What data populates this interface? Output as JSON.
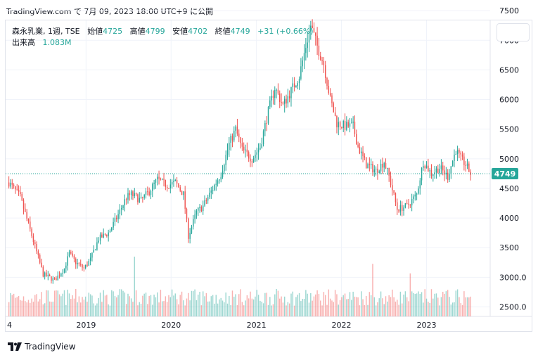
{
  "caption": "TradingView.com で 7月 09, 2023 18:00 UTC+9 に公開",
  "legend": {
    "symbol": "森永乳業, 1週, TSE",
    "open_label": "始値",
    "open": "4725",
    "high_label": "高値",
    "high": "4799",
    "low_label": "安値",
    "low": "4702",
    "close_label": "終値",
    "close": "4749",
    "change": "+31 (+0.66%)",
    "volume_label": "出来高",
    "volume": "1.083M"
  },
  "brand": "TradingView",
  "last_price_tag": "4749",
  "colors": {
    "up": "#26a69a",
    "down": "#ef5350",
    "grid": "#f0f3fa",
    "axis_text": "#131722"
  },
  "chart_data": {
    "type": "candlestick",
    "interval": "1 week",
    "price_axis": {
      "ticks": [
        2500,
        3000,
        3500,
        4000,
        4500,
        5000,
        5500,
        6000,
        6500,
        7000,
        7500
      ],
      "tick_labels": [
        "2500.0",
        "3000.0",
        "3500",
        "4000",
        "4500",
        "5000",
        "5500",
        "6000",
        "6500",
        "7000",
        "7500"
      ],
      "range": [
        2340,
        7620
      ]
    },
    "time_axis": {
      "tick_labels": [
        "4",
        "2019",
        "2020",
        "2021",
        "2022",
        "2023"
      ],
      "tick_dates": [
        "2018-04-01",
        "2019-01-01",
        "2020-01-01",
        "2021-01-01",
        "2022-01-01",
        "2023-01-01"
      ]
    },
    "last_price": 4749,
    "price_path": [
      [
        "2018-02-04",
        4600
      ],
      [
        "2018-03-25",
        4350
      ],
      [
        "2018-05-06",
        3800
      ],
      [
        "2018-07-01",
        3050
      ],
      [
        "2018-08-19",
        2950
      ],
      [
        "2018-09-30",
        3150
      ],
      [
        "2018-10-21",
        3400
      ],
      [
        "2018-11-18",
        3250
      ],
      [
        "2018-12-23",
        3150
      ],
      [
        "2019-01-20",
        3300
      ],
      [
        "2019-02-24",
        3650
      ],
      [
        "2019-04-07",
        3750
      ],
      [
        "2019-05-12",
        4000
      ],
      [
        "2019-06-23",
        4350
      ],
      [
        "2019-07-14",
        4400
      ],
      [
        "2019-08-25",
        4300
      ],
      [
        "2019-09-29",
        4450
      ],
      [
        "2019-11-03",
        4650
      ],
      [
        "2019-12-15",
        4550
      ],
      [
        "2020-01-19",
        4600
      ],
      [
        "2020-02-23",
        4400
      ],
      [
        "2020-03-15",
        3700
      ],
      [
        "2020-04-19",
        4100
      ],
      [
        "2020-05-17",
        4200
      ],
      [
        "2020-06-28",
        4500
      ],
      [
        "2020-08-02",
        4750
      ],
      [
        "2020-09-06",
        5250
      ],
      [
        "2020-10-04",
        5500
      ],
      [
        "2020-11-01",
        5150
      ],
      [
        "2020-12-13",
        5000
      ],
      [
        "2021-01-17",
        5200
      ],
      [
        "2021-02-21",
        5800
      ],
      [
        "2021-03-21",
        6200
      ],
      [
        "2021-04-25",
        5900
      ],
      [
        "2021-05-30",
        6150
      ],
      [
        "2021-07-04",
        6400
      ],
      [
        "2021-08-01",
        6900
      ],
      [
        "2021-08-22",
        7250
      ],
      [
        "2021-09-19",
        6900
      ],
      [
        "2021-10-17",
        6600
      ],
      [
        "2021-11-14",
        6000
      ],
      [
        "2021-12-12",
        5600
      ],
      [
        "2022-01-16",
        5550
      ],
      [
        "2022-02-20",
        5550
      ],
      [
        "2022-03-13",
        5200
      ],
      [
        "2022-04-17",
        4900
      ],
      [
        "2022-05-29",
        4800
      ],
      [
        "2022-07-03",
        4950
      ],
      [
        "2022-07-24",
        4700
      ],
      [
        "2022-08-28",
        4150
      ],
      [
        "2022-10-09",
        4200
      ],
      [
        "2022-11-20",
        4400
      ],
      [
        "2022-12-18",
        4950
      ],
      [
        "2023-01-22",
        4750
      ],
      [
        "2023-02-26",
        4850
      ],
      [
        "2023-04-02",
        4700
      ],
      [
        "2023-05-07",
        5150
      ],
      [
        "2023-05-28",
        5000
      ],
      [
        "2023-06-18",
        4900
      ],
      [
        "2023-07-09",
        4749
      ]
    ],
    "volume_axis": {
      "tick_labels": [
        "2500.0",
        "3000.0"
      ]
    },
    "volume_spikes": [
      [
        "2019-07-28",
        1.0
      ],
      [
        "2022-05-15",
        0.88
      ],
      [
        "2022-10-23",
        0.72
      ]
    ]
  }
}
